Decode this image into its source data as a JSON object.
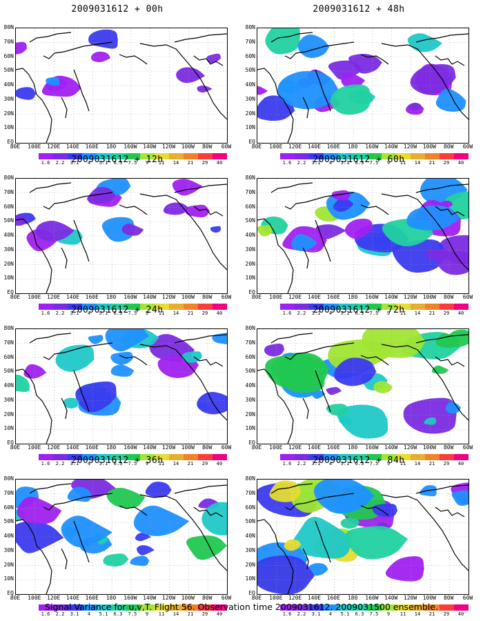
{
  "footer": "Signal Variance for u,v,T. Flight 56. Observation time 2009031612. 2009031500 ensemble.",
  "lat_labels": [
    "80N",
    "70N",
    "60N",
    "50N",
    "40N",
    "30N",
    "20N",
    "10N",
    "EQ"
  ],
  "lon_labels": [
    "80E",
    "100E",
    "120E",
    "140E",
    "160E",
    "180",
    "160W",
    "140W",
    "120W",
    "100W",
    "80W",
    "60W"
  ],
  "colorbar": {
    "labels": [
      "1.6",
      "2.2",
      "3.1",
      "4",
      "5.1",
      "6.3",
      "7.5",
      "9",
      "11",
      "14",
      "21",
      "29",
      "40"
    ],
    "colors": [
      "#a020f0",
      "#7b2be2",
      "#3a3af0",
      "#1e90ff",
      "#1ec8c8",
      "#20d2a0",
      "#20c850",
      "#a0e632",
      "#e6dc32",
      "#e6af2d",
      "#f08228",
      "#fa3c3c",
      "#f00082"
    ]
  },
  "panels": [
    {
      "title": "2009031612 + 00h",
      "intensity": 0.15
    },
    {
      "title": "2009031612 + 12h",
      "intensity": 0.3
    },
    {
      "title": "2009031612 + 24h",
      "intensity": 0.45
    },
    {
      "title": "2009031612 + 36h",
      "intensity": 0.55
    },
    {
      "title": "2009031612 + 48h",
      "intensity": 0.55
    },
    {
      "title": "2009031612 + 60h",
      "intensity": 0.65
    },
    {
      "title": "2009031612 + 72h",
      "intensity": 0.75
    },
    {
      "title": "2009031612 + 84h",
      "intensity": 0.85
    }
  ]
}
